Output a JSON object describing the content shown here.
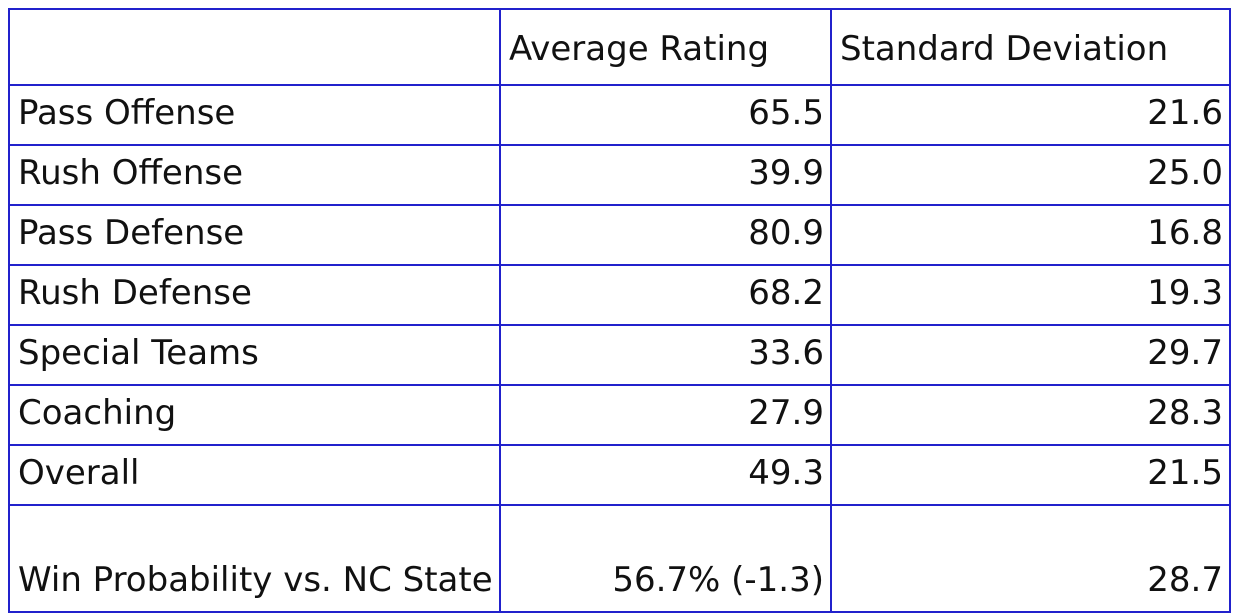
{
  "table": {
    "header": [
      "Average Rating",
      "Standard Deviation"
    ],
    "rows": [
      [
        "Pass Offense",
        "65.5",
        "21.6"
      ],
      [
        "Rush Offense",
        "39.9",
        "25.0"
      ],
      [
        "Pass Defense",
        "80.9",
        "16.8"
      ],
      [
        "Rush Defense",
        "68.2",
        "19.3"
      ],
      [
        "Special Teams",
        "33.6",
        "29.7"
      ],
      [
        "Coaching",
        "27.9",
        "28.3"
      ],
      [
        "Overall",
        "49.3",
        "21.5"
      ],
      [
        "Win Probability vs. NC State",
        "56.7% (-1.3)",
        "28.7"
      ]
    ]
  }
}
